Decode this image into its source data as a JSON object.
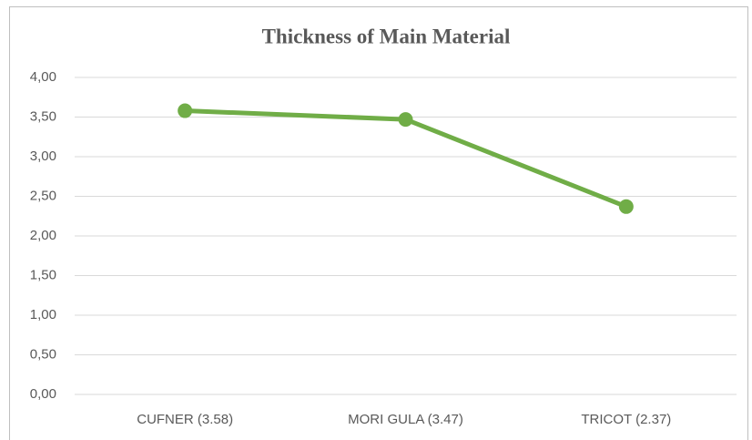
{
  "chart_data": {
    "type": "line",
    "title": "Thickness of Main Material",
    "categories": [
      "CUFNER (3.58)",
      "MORI GULA (3.47)",
      "TRICOT (2.37)"
    ],
    "values": [
      3.58,
      3.47,
      2.37
    ],
    "color": "#70ad47",
    "ylim": [
      0,
      4
    ],
    "yticks": [
      {
        "value": 0,
        "label": "0,00"
      },
      {
        "value": 0.5,
        "label": "0,50"
      },
      {
        "value": 1,
        "label": "1,00"
      },
      {
        "value": 1.5,
        "label": "1,50"
      },
      {
        "value": 2,
        "label": "2,00"
      },
      {
        "value": 2.5,
        "label": "2,50"
      },
      {
        "value": 3,
        "label": "3,00"
      },
      {
        "value": 3.5,
        "label": "3,50"
      },
      {
        "value": 4,
        "label": "4,00"
      }
    ],
    "grid": true
  }
}
